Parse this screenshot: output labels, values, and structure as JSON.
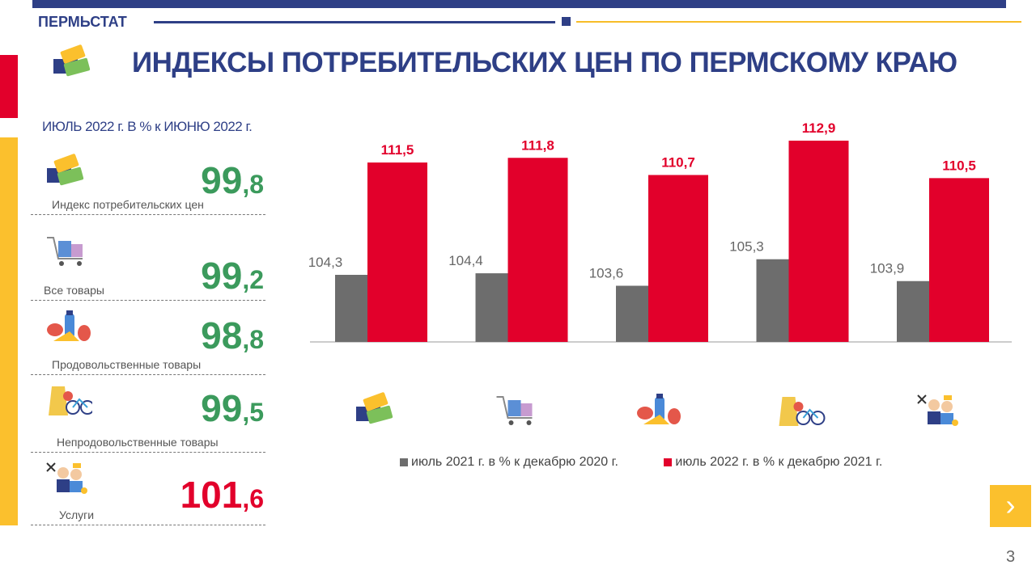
{
  "header": {
    "brand": "ПЕРМЬСТАТ",
    "title": "ИНДЕКСЫ ПОТРЕБИТЕЛЬСКИХ ЦЕН ПО ПЕРМСКОМУ КРАЮ"
  },
  "left": {
    "subtitle": "ИЮЛЬ 2022 г. В % к ИЮНЮ 2022 г.",
    "items": [
      {
        "label": "Индекс потребительских цен",
        "int": "99",
        "dec": ",8",
        "color": "#3b9a5c",
        "icon": "price-tags-icon"
      },
      {
        "label": "Все товары",
        "int": "99",
        "dec": ",2",
        "color": "#3b9a5c",
        "icon": "shopping-cart-icon"
      },
      {
        "label": "Продовольственные товары",
        "int": "98",
        "dec": ",8",
        "color": "#3b9a5c",
        "icon": "food-icon"
      },
      {
        "label": "Непродовольственные товары",
        "int": "99",
        "dec": ",5",
        "color": "#3b9a5c",
        "icon": "clothes-bicycle-icon"
      },
      {
        "label": "Услуги",
        "int": "101",
        "dec": ",6",
        "color": "#e2002b",
        "icon": "services-icon"
      }
    ]
  },
  "chart_data": {
    "type": "bar",
    "categories": [
      "Индекс потребительских цен",
      "Все товары",
      "Продовольственные товары",
      "Непродовольственные товары",
      "Услуги"
    ],
    "category_icons": [
      "price-tags-icon",
      "shopping-cart-icon",
      "food-icon",
      "clothes-bicycle-icon",
      "services-icon"
    ],
    "series": [
      {
        "name": "июль 2021 г. в  % к декабрю 2020 г.",
        "color": "#6d6d6d",
        "values": [
          104.3,
          104.4,
          103.6,
          105.3,
          103.9
        ],
        "labels": [
          "104,3",
          "104,4",
          "103,6",
          "105,3",
          "103,9"
        ]
      },
      {
        "name": "июль 2022 г. в % к декабрю 2021 г.",
        "color": "#e2002b",
        "values": [
          111.5,
          111.8,
          110.7,
          112.9,
          110.5
        ],
        "labels": [
          "111,5",
          "111,8",
          "110,7",
          "112,9",
          "110,5"
        ]
      }
    ],
    "ylim": [
      100,
      114
    ],
    "legend": "bottom"
  },
  "nav": {
    "next": "›"
  },
  "page_number": "3"
}
